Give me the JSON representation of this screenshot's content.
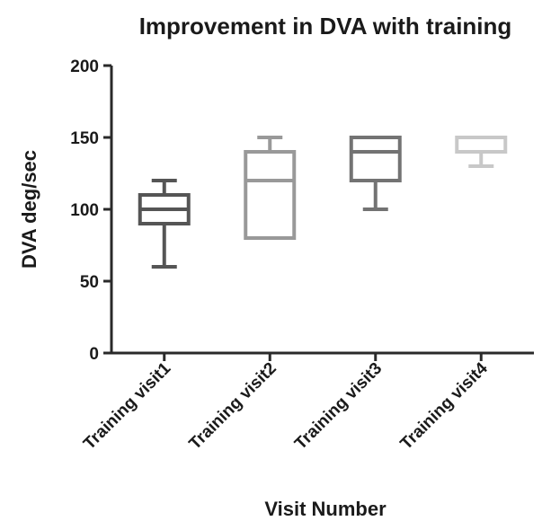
{
  "chart_data": {
    "type": "box",
    "title": "Improvement in DVA with training",
    "xlabel": "Visit Number",
    "ylabel": "DVA deg/sec",
    "ylim": [
      0,
      200
    ],
    "yticks": [
      "0",
      "50",
      "100",
      "150",
      "200"
    ],
    "categories": [
      "Training visit1",
      "Training visit2",
      "Training visit3",
      "Training visit4"
    ],
    "boxes": [
      {
        "min": 60,
        "q1": 90,
        "median": 100,
        "q3": 110,
        "max": 120,
        "color": "#555555"
      },
      {
        "min": 80,
        "q1": 80,
        "median": 120,
        "q3": 140,
        "max": 150,
        "color": "#999999"
      },
      {
        "min": 100,
        "q1": 120,
        "median": 140,
        "q3": 150,
        "max": 150,
        "color": "#737373"
      },
      {
        "min": 130,
        "q1": 140,
        "median": 150,
        "q3": 150,
        "max": 150,
        "color": "#c8c8c8"
      }
    ],
    "grid": false,
    "legend": "none"
  }
}
